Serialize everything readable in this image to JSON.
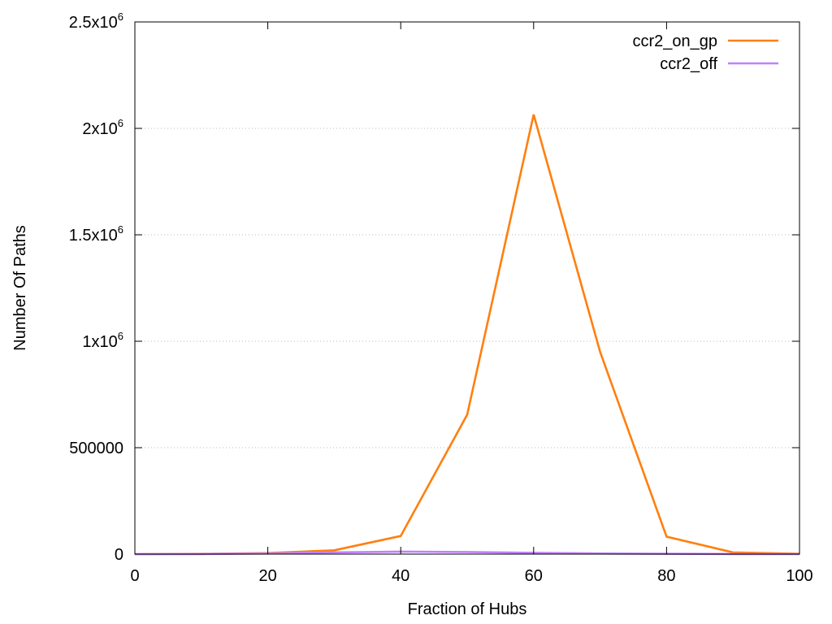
{
  "chart_data": {
    "type": "line",
    "title": "",
    "xlabel": "Fraction of Hubs",
    "ylabel": "Number Of Paths",
    "xlim": [
      0,
      100
    ],
    "ylim": [
      0,
      2500000
    ],
    "grid": true,
    "legend_position": "top-right",
    "x_ticks": [
      0,
      20,
      40,
      60,
      80,
      100
    ],
    "x_tick_labels": [
      "0",
      "20",
      "40",
      "60",
      "80",
      "100"
    ],
    "y_ticks": [
      0,
      500000,
      1000000,
      1500000,
      2000000,
      2500000
    ],
    "y_tick_labels": [
      {
        "base": "0",
        "exp": ""
      },
      {
        "base": "500000",
        "exp": ""
      },
      {
        "base": "1x10",
        "exp": "6"
      },
      {
        "base": "1.5x10",
        "exp": "6"
      },
      {
        "base": "2x10",
        "exp": "6"
      },
      {
        "base": "2.5x10",
        "exp": "6"
      }
    ],
    "x": [
      0,
      10,
      20,
      30,
      40,
      50,
      60,
      70,
      80,
      90,
      100
    ],
    "series": [
      {
        "name": "ccr2_on_gp",
        "color": "#ff7f0e",
        "values": [
          0,
          1000,
          5000,
          18000,
          85000,
          655000,
          2065000,
          950000,
          82000,
          8000,
          2000
        ]
      },
      {
        "name": "ccr2_off",
        "color": "#c080ff",
        "values": [
          0,
          500,
          3000,
          8000,
          12000,
          10000,
          6000,
          3000,
          1500,
          500,
          0
        ]
      }
    ]
  }
}
